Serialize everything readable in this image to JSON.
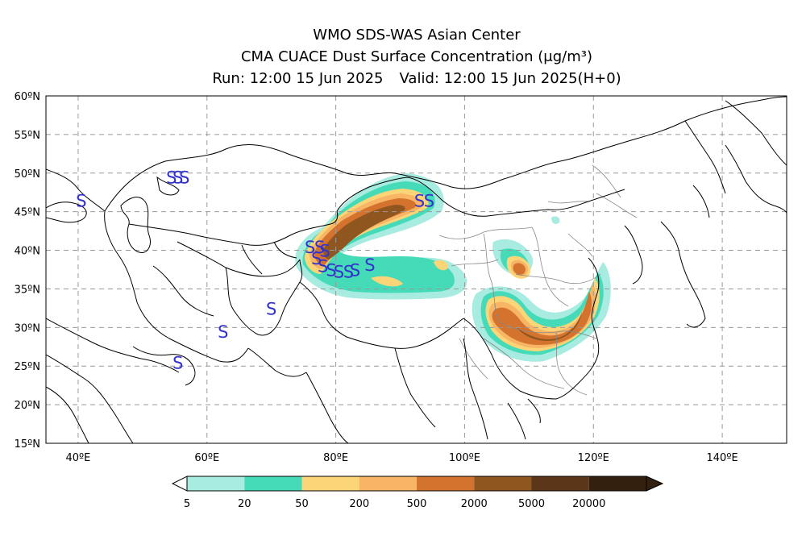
{
  "titles": {
    "line1": "WMO SDS-WAS Asian Center",
    "line2_prefix": "CMA CUACE Dust Surface Concentration",
    "line2_unit": "(μg/m³)",
    "run": "Run: 12:00 15 Jun 2025",
    "valid": "Valid: 12:00 15 Jun 2025(H+0)"
  },
  "axes": {
    "lat_labels": [
      "60ºN",
      "55ºN",
      "50ºN",
      "45ºN",
      "40ºN",
      "35ºN",
      "30ºN",
      "25ºN",
      "20ºN",
      "15ºN"
    ],
    "lat_values": [
      60,
      55,
      50,
      45,
      40,
      35,
      30,
      25,
      20,
      15
    ],
    "lon_labels": [
      "40ºE",
      "60ºE",
      "80ºE",
      "100ºE",
      "120ºE",
      "140ºE"
    ],
    "lon_values": [
      40,
      60,
      80,
      100,
      120,
      140
    ],
    "lon_range": [
      35,
      150
    ],
    "lat_range": [
      15,
      60
    ],
    "grid": "dashed"
  },
  "legend": {
    "levels": [
      "5",
      "20",
      "50",
      "200",
      "500",
      "2000",
      "5000",
      "20000"
    ],
    "colors": [
      "#a8ebe0",
      "#45dbb8",
      "#fbd578",
      "#f8b566",
      "#d4732e",
      "#8f561f",
      "#5b3618",
      "#33200f"
    ]
  },
  "station_marker": "S",
  "stations": [
    {
      "lon": 40.5,
      "lat": 46.5
    },
    {
      "lon": 54.5,
      "lat": 49.5
    },
    {
      "lon": 55.5,
      "lat": 49.5
    },
    {
      "lon": 56.5,
      "lat": 49.5
    },
    {
      "lon": 62.5,
      "lat": 29.5
    },
    {
      "lon": 55.5,
      "lat": 25.5
    },
    {
      "lon": 70.0,
      "lat": 32.5
    },
    {
      "lon": 76.0,
      "lat": 40.5
    },
    {
      "lon": 77.5,
      "lat": 40.5
    },
    {
      "lon": 78.3,
      "lat": 40.0
    },
    {
      "lon": 77.0,
      "lat": 39.0
    },
    {
      "lon": 78.0,
      "lat": 38.0
    },
    {
      "lon": 79.3,
      "lat": 37.5
    },
    {
      "lon": 80.5,
      "lat": 37.3
    },
    {
      "lon": 82.0,
      "lat": 37.3
    },
    {
      "lon": 83.0,
      "lat": 37.5
    },
    {
      "lon": 85.3,
      "lat": 38.2
    },
    {
      "lon": 93.0,
      "lat": 46.5
    },
    {
      "lon": 94.5,
      "lat": 46.5
    }
  ],
  "colors": {
    "border": "#000000",
    "province": "#888888",
    "grid": "#999999",
    "station": "#3333cc"
  }
}
